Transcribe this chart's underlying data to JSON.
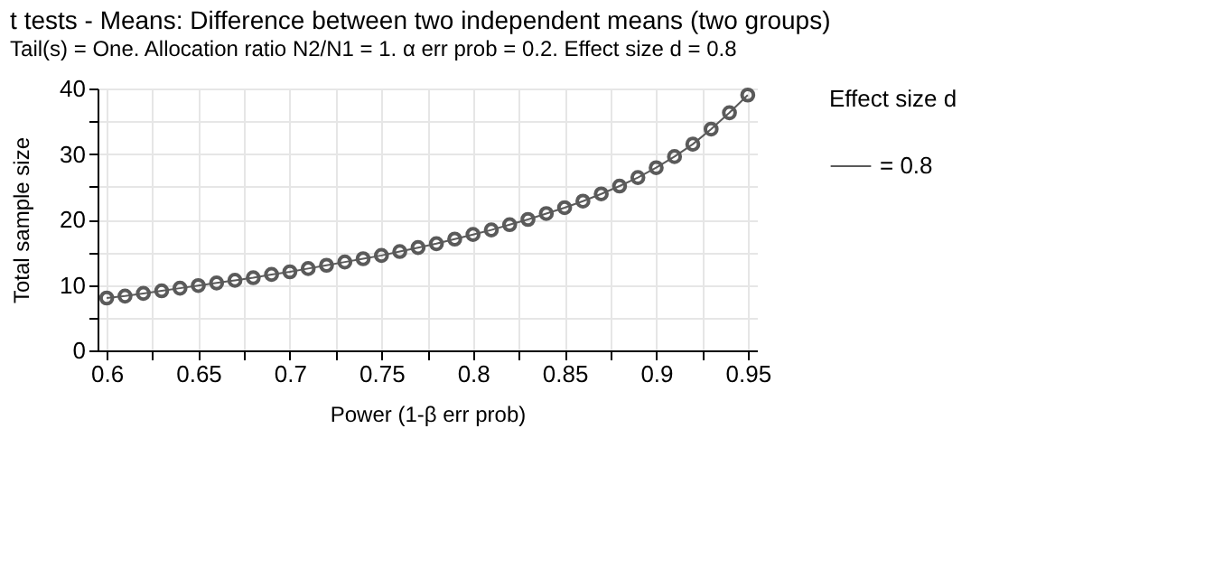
{
  "chart_data": {
    "type": "line",
    "title": "t tests - Means: Difference between two independent means (two groups)",
    "subtitle": "Tail(s) = One. Allocation ratio N2/N1 = 1. α err prob = 0.2. Effect size d = 0.8",
    "xlabel": "Power (1-β err prob)",
    "ylabel": "Total sample size",
    "legend_title": "Effect size d",
    "x": [
      0.6,
      0.61,
      0.62,
      0.63,
      0.64,
      0.65,
      0.66,
      0.67,
      0.68,
      0.69,
      0.7,
      0.71,
      0.72,
      0.73,
      0.74,
      0.75,
      0.76,
      0.77,
      0.78,
      0.79,
      0.8,
      0.81,
      0.82,
      0.83,
      0.84,
      0.85,
      0.86,
      0.87,
      0.88,
      0.89,
      0.9,
      0.91,
      0.92,
      0.93,
      0.94,
      0.95
    ],
    "series": [
      {
        "name": "= 0.8",
        "color": "#5a5a5a",
        "values": [
          8.0,
          8.3,
          8.7,
          9.1,
          9.5,
          9.9,
          10.3,
          10.7,
          11.1,
          11.6,
          12.0,
          12.5,
          13.0,
          13.5,
          14.0,
          14.5,
          15.1,
          15.7,
          16.3,
          17.0,
          17.7,
          18.4,
          19.2,
          20.0,
          20.9,
          21.8,
          22.8,
          23.9,
          25.1,
          26.4,
          27.9,
          29.6,
          31.5,
          33.8,
          36.3,
          39.0
        ]
      }
    ],
    "xlim": [
      0.595,
      0.955
    ],
    "xticks": [
      0.6,
      {
        "value": 0.625,
        "label": null
      },
      0.65,
      {
        "value": 0.675,
        "label": null
      },
      0.7,
      {
        "value": 0.725,
        "label": null
      },
      0.75,
      {
        "value": 0.775,
        "label": null
      },
      0.8,
      {
        "value": 0.825,
        "label": null
      },
      0.85,
      {
        "value": 0.875,
        "label": null
      },
      0.9,
      {
        "value": 0.925,
        "label": null
      },
      0.95
    ],
    "ylim": [
      0,
      40
    ],
    "yticks": [
      0,
      {
        "value": 5,
        "label": null
      },
      10,
      {
        "value": 15,
        "label": null
      },
      20,
      {
        "value": 25,
        "label": null
      },
      30,
      {
        "value": 35,
        "label": null
      },
      40
    ],
    "grid": true,
    "legend": "right",
    "marker": "circle",
    "line_style": "solid"
  }
}
